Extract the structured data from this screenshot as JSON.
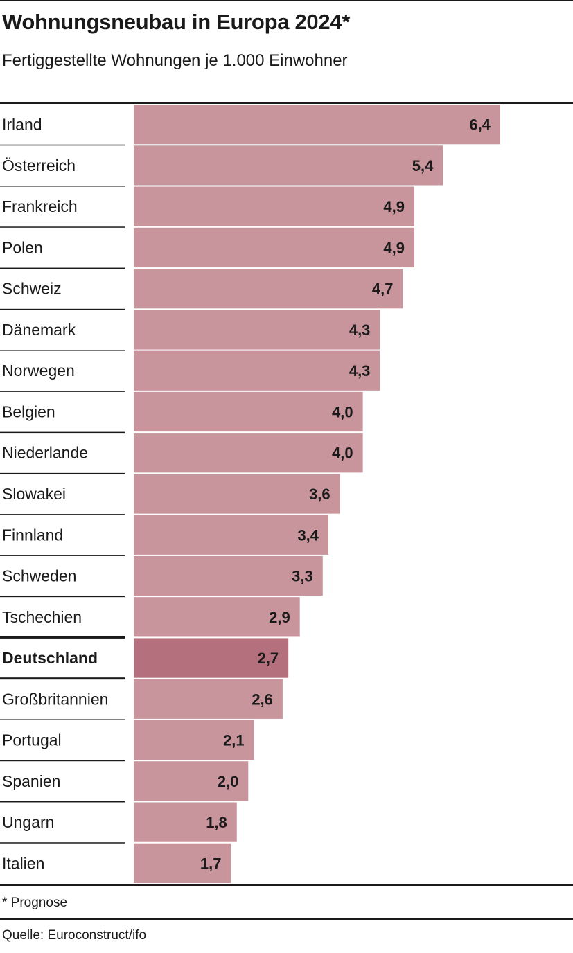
{
  "title": "Wohnungsneubau in Europa 2024*",
  "subtitle": "Fertiggestellte Wohnungen je 1.000 Einwohner",
  "footnote": "* Prognose",
  "source": "Quelle: Euroconstruct/ifo",
  "colors": {
    "bar": "#c8959c",
    "bar_highlight": "#b5707d",
    "text": "#1a1a1a",
    "rule": "#1a1a1a"
  },
  "chart_data": {
    "type": "bar",
    "orientation": "horizontal",
    "title": "Wohnungsneubau in Europa 2024*",
    "subtitle": "Fertiggestellte Wohnungen je 1.000 Einwohner",
    "xlim": [
      0,
      6.4
    ],
    "grid": false,
    "highlight": "Deutschland",
    "categories": [
      "Irland",
      "Österreich",
      "Frankreich",
      "Polen",
      "Schweiz",
      "Dänemark",
      "Norwegen",
      "Belgien",
      "Niederlande",
      "Slowakei",
      "Finnland",
      "Schweden",
      "Tschechien",
      "Deutschland",
      "Großbritannien",
      "Portugal",
      "Spanien",
      "Ungarn",
      "Italien"
    ],
    "values": [
      6.4,
      5.4,
      4.9,
      4.9,
      4.7,
      4.3,
      4.3,
      4.0,
      4.0,
      3.6,
      3.4,
      3.3,
      2.9,
      2.7,
      2.6,
      2.1,
      2.0,
      1.8,
      1.7
    ],
    "value_labels": [
      "6,4",
      "5,4",
      "4,9",
      "4,9",
      "4,7",
      "4,3",
      "4,3",
      "4,0",
      "4,0",
      "3,6",
      "3,4",
      "3,3",
      "2,9",
      "2,7",
      "2,6",
      "2,1",
      "2,0",
      "1,8",
      "1,7"
    ]
  }
}
